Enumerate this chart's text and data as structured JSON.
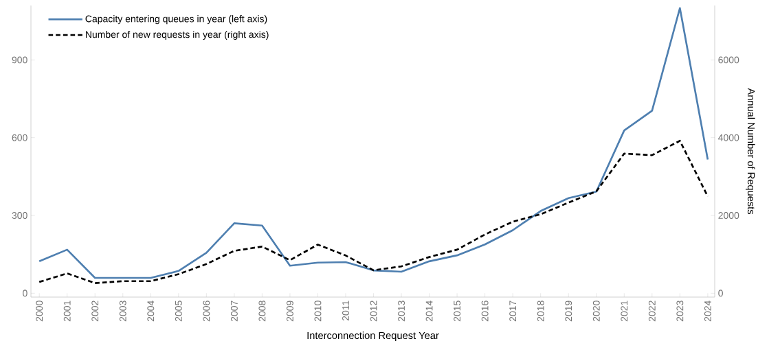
{
  "chart_data": {
    "type": "line",
    "xlabel": "Interconnection Request Year",
    "y2label": "Annual Number of Requests",
    "categories": [
      "2000",
      "2001",
      "2002",
      "2003",
      "2004",
      "2005",
      "2006",
      "2007",
      "2008",
      "2009",
      "2010",
      "2011",
      "2012",
      "2013",
      "2014",
      "2015",
      "2016",
      "2017",
      "2018",
      "2019",
      "2020",
      "2021",
      "2022",
      "2023",
      "2024"
    ],
    "series": [
      {
        "name": "Capacity entering queues in year (left axis)",
        "color": "#4e7fb0",
        "line_style": "solid",
        "values": [
          123,
          168,
          59,
          59,
          59,
          86,
          156,
          270,
          261,
          106,
          118,
          120,
          88,
          83,
          123,
          146,
          188,
          243,
          317,
          367,
          392,
          628,
          704,
          1100,
          516
        ]
      },
      {
        "name": "Number of new requests in year (right axis)",
        "color": "#000000",
        "line_style": "dashed",
        "axis": "y2",
        "values": [
          290,
          510,
          260,
          310,
          310,
          490,
          750,
          1090,
          1200,
          850,
          1250,
          970,
          590,
          690,
          930,
          1120,
          1510,
          1840,
          2030,
          2330,
          2620,
          3590,
          3550,
          3920,
          2490
        ]
      }
    ],
    "ylim": [
      -15,
      1110
    ],
    "yticks": [
      0,
      300,
      600,
      900
    ],
    "y2lim": [
      -100,
      7400
    ],
    "y2ticks": [
      0,
      2000,
      4000,
      6000
    ],
    "legend": "top left",
    "grid": false
  }
}
